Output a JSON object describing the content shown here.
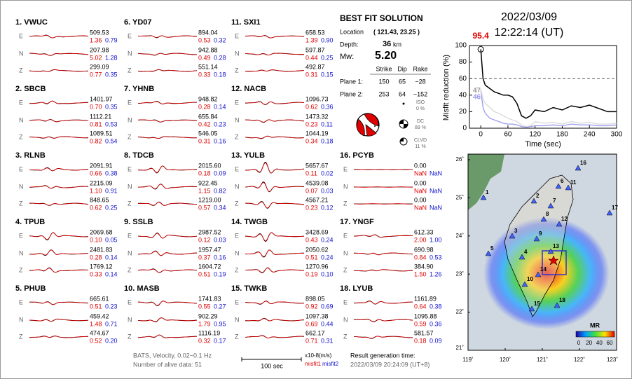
{
  "stations": [
    {
      "label": "1.  VWUC",
      "traces": [
        {
          "comp": "E",
          "amp": "509.53",
          "misfit1": "1.36",
          "misfit2": "0.79"
        },
        {
          "comp": "N",
          "amp": "207.98",
          "misfit1": "5.02",
          "misfit2": "1.28"
        },
        {
          "comp": "Z",
          "amp": "299.09",
          "misfit1": "0.77",
          "misfit2": "0.35"
        }
      ]
    },
    {
      "label": "2.  SBCB",
      "traces": [
        {
          "comp": "E",
          "amp": "1401.97",
          "misfit1": "0.70",
          "misfit2": "0.35"
        },
        {
          "comp": "N",
          "amp": "1112.21",
          "misfit1": "0.81",
          "misfit2": "0.53"
        },
        {
          "comp": "Z",
          "amp": "1089.51",
          "misfit1": "0.82",
          "misfit2": "0.54"
        }
      ]
    },
    {
      "label": "3.  RLNB",
      "traces": [
        {
          "comp": "E",
          "amp": "2091.91",
          "misfit1": "0.66",
          "misfit2": "0.38"
        },
        {
          "comp": "N",
          "amp": "2215.09",
          "misfit1": "1.10",
          "misfit2": "0.91"
        },
        {
          "comp": "Z",
          "amp": "848.65",
          "misfit1": "0.62",
          "misfit2": "0.25"
        }
      ]
    },
    {
      "label": "4.  TPUB",
      "traces": [
        {
          "comp": "E",
          "amp": "2069.68",
          "misfit1": "0.10",
          "misfit2": "0.05"
        },
        {
          "comp": "N",
          "amp": "2481.83",
          "misfit1": "0.28",
          "misfit2": "0.14"
        },
        {
          "comp": "Z",
          "amp": "1769.12",
          "misfit1": "0.33",
          "misfit2": "0.14"
        }
      ]
    },
    {
      "label": "5.  PHUB",
      "traces": [
        {
          "comp": "E",
          "amp": "665.61",
          "misfit1": "0.51",
          "misfit2": "0.23"
        },
        {
          "comp": "N",
          "amp": "459.42",
          "misfit1": "1.48",
          "misfit2": "0.71"
        },
        {
          "comp": "Z",
          "amp": "474.67",
          "misfit1": "0.52",
          "misfit2": "0.20"
        }
      ]
    },
    {
      "label": "6.  YD07",
      "traces": [
        {
          "comp": "E",
          "amp": "894.04",
          "misfit1": "0.53",
          "misfit2": "0.32"
        },
        {
          "comp": "N",
          "amp": "942.88",
          "misfit1": "0.49",
          "misfit2": "0.28"
        },
        {
          "comp": "Z",
          "amp": "551.14",
          "misfit1": "0.33",
          "misfit2": "0.18"
        }
      ]
    },
    {
      "label": "7.  YHNB",
      "traces": [
        {
          "comp": "E",
          "amp": "948.82",
          "misfit1": "0.28",
          "misfit2": "0.14"
        },
        {
          "comp": "N",
          "amp": "655.84",
          "misfit1": "0.42",
          "misfit2": "0.23"
        },
        {
          "comp": "Z",
          "amp": "546.05",
          "misfit1": "0.31",
          "misfit2": "0.16"
        }
      ]
    },
    {
      "label": "8.  TDCB",
      "traces": [
        {
          "comp": "E",
          "amp": "2015.60",
          "misfit1": "0.18",
          "misfit2": "0.09"
        },
        {
          "comp": "N",
          "amp": "922.45",
          "misfit1": "1.15",
          "misfit2": "0.82"
        },
        {
          "comp": "Z",
          "amp": "1219.00",
          "misfit1": "0.57",
          "misfit2": "0.34"
        }
      ]
    },
    {
      "label": "9.  SSLB",
      "traces": [
        {
          "comp": "E",
          "amp": "2987.52",
          "misfit1": "0.12",
          "misfit2": "0.03"
        },
        {
          "comp": "N",
          "amp": "1957.47",
          "misfit1": "0.37",
          "misfit2": "0.16"
        },
        {
          "comp": "Z",
          "amp": "1604.72",
          "misfit1": "0.51",
          "misfit2": "0.19"
        }
      ]
    },
    {
      "label": "10.  MASB",
      "traces": [
        {
          "comp": "E",
          "amp": "1741.83",
          "misfit1": "0.55",
          "misfit2": "0.27"
        },
        {
          "comp": "N",
          "amp": "902.29",
          "misfit1": "1.79",
          "misfit2": "0.95"
        },
        {
          "comp": "Z",
          "amp": "1116.19",
          "misfit1": "0.32",
          "misfit2": "0.17"
        }
      ]
    },
    {
      "label": "11.  SXI1",
      "traces": [
        {
          "comp": "E",
          "amp": "658.53",
          "misfit1": "1.39",
          "misfit2": "0.90"
        },
        {
          "comp": "N",
          "amp": "597.87",
          "misfit1": "0.44",
          "misfit2": "0.25"
        },
        {
          "comp": "Z",
          "amp": "492.87",
          "misfit1": "0.31",
          "misfit2": "0.15"
        }
      ]
    },
    {
      "label": "12.  NACB",
      "traces": [
        {
          "comp": "E",
          "amp": "1096.73",
          "misfit1": "0.62",
          "misfit2": "0.36"
        },
        {
          "comp": "N",
          "amp": "1473.32",
          "misfit1": "0.23",
          "misfit2": "0.11"
        },
        {
          "comp": "Z",
          "amp": "1044.19",
          "misfit1": "0.34",
          "misfit2": "0.18"
        }
      ]
    },
    {
      "label": "13.  YULB",
      "traces": [
        {
          "comp": "E",
          "amp": "5657.67",
          "misfit1": "0.11",
          "misfit2": "0.02"
        },
        {
          "comp": "N",
          "amp": "4539.08",
          "misfit1": "0.07",
          "misfit2": "0.03"
        },
        {
          "comp": "Z",
          "amp": "4567.21",
          "misfit1": "0.23",
          "misfit2": "0.12"
        }
      ]
    },
    {
      "label": "14.  TWGB",
      "traces": [
        {
          "comp": "E",
          "amp": "3428.69",
          "misfit1": "0.43",
          "misfit2": "0.24"
        },
        {
          "comp": "N",
          "amp": "2050.62",
          "misfit1": "0.51",
          "misfit2": "0.24"
        },
        {
          "comp": "Z",
          "amp": "1270.96",
          "misfit1": "0.19",
          "misfit2": "0.10"
        }
      ]
    },
    {
      "label": "15.  TWKB",
      "traces": [
        {
          "comp": "E",
          "amp": "898.05",
          "misfit1": "0.92",
          "misfit2": "0.69"
        },
        {
          "comp": "N",
          "amp": "1097.38",
          "misfit1": "0.69",
          "misfit2": "0.44"
        },
        {
          "comp": "Z",
          "amp": "662.17",
          "misfit1": "0.71",
          "misfit2": "0.31"
        }
      ]
    },
    {
      "label": "16.  PCYB",
      "traces": [
        {
          "comp": "E",
          "amp": "0.00",
          "misfit1": "NaN",
          "misfit2": "NaN"
        },
        {
          "comp": "N",
          "amp": "0.00",
          "misfit1": "NaN",
          "misfit2": "NaN"
        },
        {
          "comp": "Z",
          "amp": "0.00",
          "misfit1": "NaN",
          "misfit2": "NaN"
        }
      ]
    },
    {
      "label": "17.  YNGF",
      "traces": [
        {
          "comp": "E",
          "amp": "612.33",
          "misfit1": "2.00",
          "misfit2": "1.00"
        },
        {
          "comp": "N",
          "amp": "690.98",
          "misfit1": "0.84",
          "misfit2": "0.53"
        },
        {
          "comp": "Z",
          "amp": "384.90",
          "misfit1": "1.50",
          "misfit2": "1.26"
        }
      ]
    },
    {
      "label": "18.  LYUB",
      "traces": [
        {
          "comp": "E",
          "amp": "1161.89",
          "misfit1": "0.64",
          "misfit2": "0.38"
        },
        {
          "comp": "N",
          "amp": "1095.88",
          "misfit1": "0.59",
          "misfit2": "0.36"
        },
        {
          "comp": "Z",
          "amp": "581.57",
          "misfit1": "0.18",
          "misfit2": "0.09"
        }
      ]
    }
  ],
  "solution": {
    "title": "BEST FIT SOLUTION",
    "location_label": "Location",
    "location": "( 121.43, 23.25 )",
    "depth_label": "Depth:",
    "depth": "36",
    "depth_unit": "km",
    "mw_label": "Mw:",
    "mw": "5.20",
    "headers": [
      "Strike",
      "Dip",
      "Rake"
    ],
    "planes": [
      {
        "label": "Plane 1:",
        "values": [
          "150",
          "65",
          "−28"
        ]
      },
      {
        "label": "Plane 2:",
        "values": [
          "253",
          "64",
          "−152"
        ]
      }
    ],
    "components": [
      {
        "label": "ISO",
        "value": "0 %"
      },
      {
        "label": "DC",
        "value": "89 %"
      },
      {
        "label": "CLVD",
        "value": "11 %"
      }
    ]
  },
  "date": "2022/03/09",
  "time": "12:22:14  (UT)",
  "misfit": {
    "ylabel": "Misfit reduction (%)",
    "xlabel": "Time (sec)",
    "xlim": [
      -25,
      300
    ],
    "ylim": [
      0,
      100
    ],
    "xticks": [
      0,
      60,
      120,
      180,
      240,
      300
    ],
    "yticks": [
      0,
      20,
      40,
      60,
      80,
      100
    ],
    "reference_line": 60,
    "x": [
      0,
      5,
      10,
      20,
      30,
      40,
      50,
      60,
      70,
      80,
      90,
      100,
      110,
      120,
      140,
      160,
      180,
      200,
      220,
      240,
      260,
      280,
      300
    ],
    "series": [
      {
        "color": "#000000",
        "start_label": "95.4",
        "values": [
          95.4,
          60,
          52,
          48,
          44,
          42,
          40,
          40,
          38,
          30,
          15,
          12,
          15,
          22,
          20,
          25,
          22,
          27,
          25,
          28,
          24,
          20,
          20
        ]
      },
      {
        "color": "#d8d8d8",
        "start_label": "47",
        "values": [
          47,
          35,
          30,
          25,
          20,
          18,
          15,
          12,
          10,
          8,
          4,
          2,
          3,
          8,
          6,
          7,
          5,
          8,
          6,
          7,
          5,
          5,
          6
        ]
      },
      {
        "color": "#9a9af0",
        "start_label": "46",
        "values": [
          46,
          25,
          18,
          12,
          10,
          8,
          6,
          5,
          5,
          4,
          2,
          1,
          2,
          3,
          3,
          4,
          3,
          5,
          4,
          4,
          3,
          3,
          4
        ]
      }
    ]
  },
  "map": {
    "xlim": [
      119,
      123
    ],
    "ylim": [
      21,
      26
    ],
    "xticks": [
      {
        "value": 119,
        "label": "119˚"
      },
      {
        "value": 120,
        "label": "120˚"
      },
      {
        "value": 121,
        "label": "121˚"
      },
      {
        "value": 122,
        "label": "122˚"
      },
      {
        "value": 123,
        "label": "123˚"
      }
    ],
    "yticks": [
      {
        "value": 21,
        "label": "21˚"
      },
      {
        "value": 22,
        "label": "22˚"
      },
      {
        "value": 23,
        "label": "23˚"
      },
      {
        "value": 24,
        "label": "24˚"
      },
      {
        "value": 25,
        "label": "25˚"
      },
      {
        "value": 26,
        "label": "26˚"
      }
    ],
    "stations": [
      "1",
      "2",
      "3",
      "4",
      "5",
      "6",
      "7",
      "8",
      "9",
      "10",
      "11",
      "12",
      "13",
      "14",
      "15",
      "16",
      "17",
      "18"
    ],
    "colorbar": {
      "label": "MR",
      "ticks": [
        0,
        20,
        40,
        60
      ]
    }
  },
  "footer": {
    "filter": "BATS, Velocity, 0.02~0.1 Hz",
    "alive": "Number of alive data: 51",
    "scale": "100 sec",
    "units": "x10-8(m/s)",
    "misfit1": "misfit1",
    "misfit2": "misfit2",
    "generation_label": "Result generation time:",
    "generation_time": "2022/03/09 20:24:09 (UT+8)"
  }
}
